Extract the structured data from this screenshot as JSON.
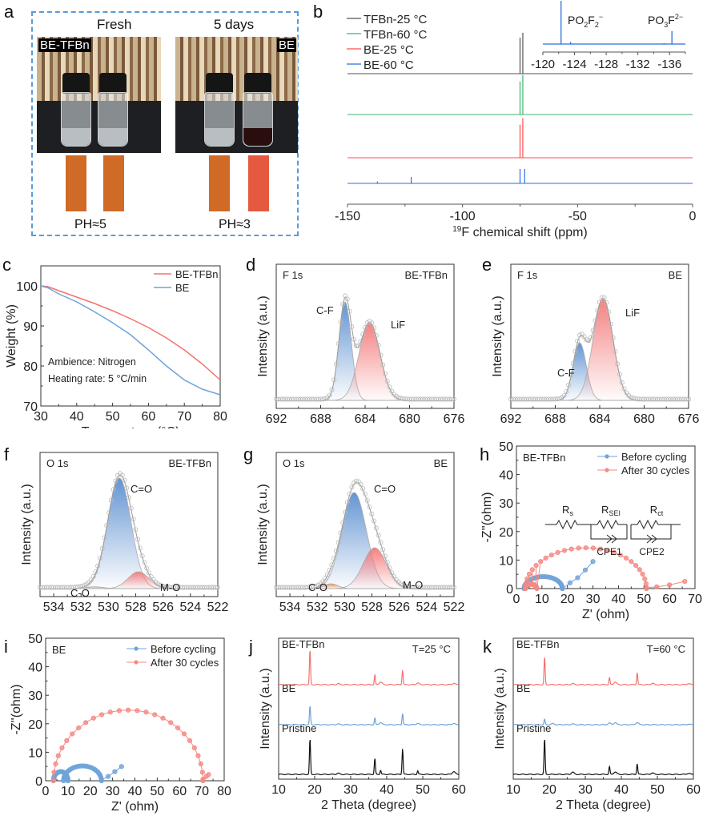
{
  "panels": {
    "a": {
      "letter": "a",
      "fresh_label": "Fresh",
      "aged_label": "5 days",
      "fresh_tag": "BE-TFBn",
      "aged_tag": "BE",
      "fresh_ph": "PH≈5",
      "aged_ph": "PH≈3",
      "strip_colors": [
        "#d06a27",
        "#d06a27",
        "#d06a27",
        "#e55a3e"
      ],
      "frame_color": "#5a9bd5"
    },
    "b": {
      "letter": "b"
    },
    "c": {
      "letter": "c"
    },
    "d": {
      "letter": "d"
    },
    "e": {
      "letter": "e"
    },
    "f": {
      "letter": "f"
    },
    "g": {
      "letter": "g"
    },
    "h": {
      "letter": "h"
    },
    "i": {
      "letter": "i"
    },
    "j": {
      "letter": "j"
    },
    "k": {
      "letter": "k"
    }
  },
  "chart_data": [
    {
      "id": "b",
      "type": "line",
      "title": "",
      "xlabel_sup": "19",
      "xlabel": "F chemical shift (ppm)",
      "ylabel": "",
      "xlim": [
        -150,
        0
      ],
      "xticks": [
        -150,
        -100,
        -50,
        0
      ],
      "legend": "top-left",
      "series": [
        {
          "name": "TFBn-25 °C",
          "color": "#555555",
          "peaks": [
            {
              "x": -75.0,
              "h": 0.75
            },
            {
              "x": -73.8,
              "h": 0.85
            }
          ]
        },
        {
          "name": "TFBn-60 °C",
          "color": "#3cb371",
          "peaks": [
            {
              "x": -75.0,
              "h": 0.75
            },
            {
              "x": -73.8,
              "h": 0.9
            }
          ]
        },
        {
          "name": "BE-25 °C",
          "color": "#ff4d4d",
          "peaks": [
            {
              "x": -75.0,
              "h": 0.75
            },
            {
              "x": -73.8,
              "h": 0.9
            }
          ]
        },
        {
          "name": "BE-60 °C",
          "color": "#2a6fdb",
          "peaks": [
            {
              "x": -137.0,
              "h": 0.06
            },
            {
              "x": -122.3,
              "h": 0.2
            },
            {
              "x": -75.0,
              "h": 0.45
            },
            {
              "x": -73.0,
              "h": 0.45
            }
          ]
        }
      ],
      "inset": {
        "xlim": [
          -120,
          -138
        ],
        "xticks": [
          -120,
          -124,
          -128,
          -132,
          -136
        ],
        "color": "#2a6fdb",
        "peaks": [
          {
            "x": -122.3,
            "h": 1.0
          },
          {
            "x": -123.5,
            "h": 0.05
          },
          {
            "x": -135.3,
            "h": 0.02
          },
          {
            "x": -136.3,
            "h": 0.3
          }
        ],
        "annotations": [
          {
            "text": "PO",
            "sub1": "2",
            "mid": "F",
            "sub2": "2",
            "sup": "−"
          },
          {
            "text": "PO",
            "sub1": "3",
            "mid": "F",
            "sub2": "",
            "sup": "2−"
          }
        ]
      }
    },
    {
      "id": "c",
      "type": "line",
      "xlabel": "Temperature (°C)",
      "ylabel": "Weight (%)",
      "xlim": [
        30,
        80
      ],
      "ylim": [
        70,
        105
      ],
      "xticks": [
        30,
        40,
        50,
        60,
        70,
        80
      ],
      "yticks": [
        70,
        80,
        90,
        100
      ],
      "legend": "top-right",
      "annotations": [
        "Ambience: Nitrogen",
        "Heating rate: 5 °C/min"
      ],
      "x": [
        30,
        32,
        35,
        40,
        45,
        50,
        55,
        60,
        65,
        70,
        75,
        80
      ],
      "series": [
        {
          "name": "BE-TFBn",
          "color": "#f4736b",
          "values": [
            100,
            99.8,
            98.8,
            97.2,
            95.6,
            93.8,
            91.8,
            89.6,
            87.0,
            84.0,
            80.5,
            76.5
          ]
        },
        {
          "name": "BE",
          "color": "#6fa3d8",
          "values": [
            100,
            99.5,
            98.0,
            96.0,
            93.5,
            90.8,
            87.8,
            84.0,
            80.0,
            76.5,
            74.2,
            72.8
          ]
        }
      ]
    },
    {
      "id": "d",
      "type": "line",
      "xlabel": "Binding energy (eV)",
      "ylabel": "Intensity (a.u.)",
      "xlim": [
        692,
        676
      ],
      "xticks": [
        692,
        688,
        684,
        680,
        676
      ],
      "corner_left": "F 1s",
      "corner_right": "BE-TFBn",
      "components": [
        {
          "name": "C-F",
          "center": 685.8,
          "height": 0.82,
          "fwhm": 1.3,
          "color": "#5b8fd0"
        },
        {
          "name": "LiF",
          "center": 683.6,
          "height": 0.65,
          "fwhm": 2.2,
          "color": "#f47a7a"
        }
      ]
    },
    {
      "id": "e",
      "type": "line",
      "xlabel": "Binding energy (eV)",
      "ylabel": "Intensity (a.u.)",
      "xlim": [
        692,
        676
      ],
      "xticks": [
        692,
        688,
        684,
        680,
        676
      ],
      "corner_left": "F 1s",
      "corner_right": "BE",
      "components": [
        {
          "name": "C-F",
          "center": 685.8,
          "height": 0.48,
          "fwhm": 1.4,
          "color": "#5b8fd0"
        },
        {
          "name": "LiF",
          "center": 683.7,
          "height": 0.85,
          "fwhm": 2.1,
          "color": "#f47a7a"
        }
      ]
    },
    {
      "id": "f",
      "type": "line",
      "xlabel": "Binding energy (eV)",
      "ylabel": "Intensity (a.u.)",
      "xlim": [
        535,
        522
      ],
      "xticks": [
        534,
        532,
        530,
        528,
        526,
        524,
        522
      ],
      "corner_left": "O 1s",
      "corner_right": "BE-TFBn",
      "components": [
        {
          "name": "C=O",
          "center": 529.2,
          "height": 0.92,
          "fwhm": 2.0,
          "color": "#5b8fd0"
        },
        {
          "name": "M-O",
          "center": 527.8,
          "height": 0.14,
          "fwhm": 1.8,
          "color": "#f47a7a"
        },
        {
          "name": "C-O",
          "center": 531.0,
          "height": 0.015,
          "fwhm": 1.5,
          "color": "#f0a060"
        }
      ]
    },
    {
      "id": "g",
      "type": "line",
      "xlabel": "Binding energy (eV)",
      "ylabel": "Intensity (a.u.)",
      "xlim": [
        535,
        522
      ],
      "xticks": [
        534,
        532,
        530,
        528,
        526,
        524,
        522
      ],
      "corner_left": "O 1s",
      "corner_right": "BE",
      "components": [
        {
          "name": "C=O",
          "center": 529.3,
          "height": 0.8,
          "fwhm": 2.1,
          "color": "#5b8fd0"
        },
        {
          "name": "M-O",
          "center": 527.8,
          "height": 0.34,
          "fwhm": 2.0,
          "color": "#f47a7a"
        },
        {
          "name": "C-O",
          "center": 531.0,
          "height": 0.04,
          "fwhm": 1.2,
          "color": "#f08a3a"
        }
      ]
    },
    {
      "id": "h",
      "type": "scatter",
      "xlabel": "Z' (ohm)",
      "ylabel": "-Z''(ohm)",
      "xlim": [
        0,
        70
      ],
      "ylim": [
        0,
        50
      ],
      "xticks": [
        0,
        10,
        20,
        30,
        40,
        50,
        60,
        70
      ],
      "yticks": [
        0,
        10,
        20,
        30,
        40,
        50
      ],
      "corner_left": "BE-TFBn",
      "legend": "top-right",
      "circuit": {
        "labels": [
          "R",
          "R",
          "R"
        ],
        "subs": [
          "s",
          "SEI",
          "ct"
        ],
        "cpe": [
          "CPE1",
          "CPE2"
        ]
      },
      "series": [
        {
          "name": "Before cycling",
          "color": "#6fa3d8",
          "arcs": [
            {
              "x0": 3,
              "x1": 18,
              "h": 4.2
            }
          ],
          "tail": [
            [
              18,
              0
            ],
            [
              21,
              2
            ],
            [
              24,
              3.8
            ],
            [
              27,
              6.5
            ],
            [
              30,
              9.5
            ]
          ]
        },
        {
          "name": "After 30 cycles",
          "color": "#f48a84",
          "arcs": [
            {
              "x0": 3.5,
              "x1": 8,
              "h": 1.5
            },
            {
              "x0": 3.5,
              "x1": 51,
              "h": 14.3
            }
          ],
          "tail": [
            [
              51,
              0.3
            ],
            [
              55,
              0.6
            ],
            [
              60,
              1.3
            ],
            [
              66,
              2.5
            ]
          ]
        }
      ]
    },
    {
      "id": "i",
      "type": "scatter",
      "xlabel": "Z' (ohm)",
      "ylabel": "-Z''(ohm)",
      "xlim": [
        0,
        80
      ],
      "ylim": [
        0,
        50
      ],
      "xticks": [
        0,
        10,
        20,
        30,
        40,
        50,
        60,
        70,
        80
      ],
      "yticks": [
        0,
        10,
        20,
        30,
        40,
        50
      ],
      "corner_left": "BE",
      "legend": "top-right",
      "series": [
        {
          "name": "Before cycling",
          "color": "#6fa3d8",
          "arcs": [
            {
              "x0": 3.5,
              "x1": 10,
              "h": 3.2
            },
            {
              "x0": 8,
              "x1": 25,
              "h": 5.2
            }
          ],
          "tail": [
            [
              25,
              0.3
            ],
            [
              28,
              1.5
            ],
            [
              31,
              3.2
            ],
            [
              34,
              5
            ]
          ]
        },
        {
          "name": "After 30 cycles",
          "color": "#f48a84",
          "arcs": [
            {
              "x0": 3.5,
              "x1": 70.5,
              "h": 24.8
            }
          ],
          "tail": [
            [
              70.5,
              0.5
            ],
            [
              72,
              1.5
            ],
            [
              73,
              2.2
            ]
          ]
        }
      ]
    },
    {
      "id": "j",
      "type": "line",
      "xlabel": "2 Theta (degree)",
      "ylabel": "Intensity (a.u.)",
      "xlim": [
        10,
        60
      ],
      "xticks": [
        10,
        20,
        30,
        40,
        50,
        60
      ],
      "corner_right": "T=25 °C",
      "series": [
        {
          "name": "BE-TFBn",
          "color": "#f4736b",
          "peaks": [
            [
              18.7,
              1.0
            ],
            [
              26.5,
              0.03
            ],
            [
              36.7,
              0.28
            ],
            [
              38.3,
              0.08
            ],
            [
              44.4,
              0.42
            ],
            [
              48.6,
              0.05
            ],
            [
              58.6,
              0.04
            ]
          ]
        },
        {
          "name": "BE",
          "color": "#6fa3d8",
          "peaks": [
            [
              18.7,
              0.7
            ],
            [
              26.5,
              0.03
            ],
            [
              36.7,
              0.25
            ],
            [
              38.3,
              0.08
            ],
            [
              44.4,
              0.42
            ],
            [
              48.6,
              0.05
            ],
            [
              58.6,
              0.05
            ]
          ]
        },
        {
          "name": "Pristine",
          "color": "#111111",
          "peaks": [
            [
              18.7,
              1.0
            ],
            [
              26.5,
              0.03
            ],
            [
              36.7,
              0.45
            ],
            [
              38.3,
              0.12
            ],
            [
              44.4,
              0.72
            ],
            [
              48.6,
              0.1
            ],
            [
              58.6,
              0.08
            ]
          ]
        }
      ]
    },
    {
      "id": "k",
      "type": "line",
      "xlabel": "2 Theta (degree)",
      "ylabel": "Intensity (a.u.)",
      "xlim": [
        10,
        60
      ],
      "xticks": [
        10,
        20,
        30,
        40,
        50,
        60
      ],
      "corner_right": "T=60 °C",
      "series": [
        {
          "name": "BE-TFBn",
          "color": "#f4736b",
          "peaks": [
            [
              18.7,
              0.8
            ],
            [
              26.5,
              0.03
            ],
            [
              36.7,
              0.2
            ],
            [
              38.3,
              0.08
            ],
            [
              44.4,
              0.35
            ],
            [
              48.6,
              0.04
            ],
            [
              58.6,
              0.03
            ]
          ]
        },
        {
          "name": "BE",
          "color": "#6fa3d8",
          "peaks": [
            [
              18.7,
              0.2
            ],
            [
              21,
              0.04
            ],
            [
              26.5,
              0.03
            ],
            [
              36.7,
              0.06
            ],
            [
              38.3,
              0.08
            ],
            [
              44.4,
              0.08
            ],
            [
              58.6,
              0.02
            ]
          ]
        },
        {
          "name": "Pristine",
          "color": "#111111",
          "peaks": [
            [
              18.7,
              1.0
            ],
            [
              26.5,
              0.06
            ],
            [
              36.7,
              0.22
            ],
            [
              38.3,
              0.07
            ],
            [
              44.4,
              0.3
            ],
            [
              48.6,
              0.04
            ],
            [
              58.6,
              0.03
            ]
          ]
        }
      ]
    }
  ]
}
